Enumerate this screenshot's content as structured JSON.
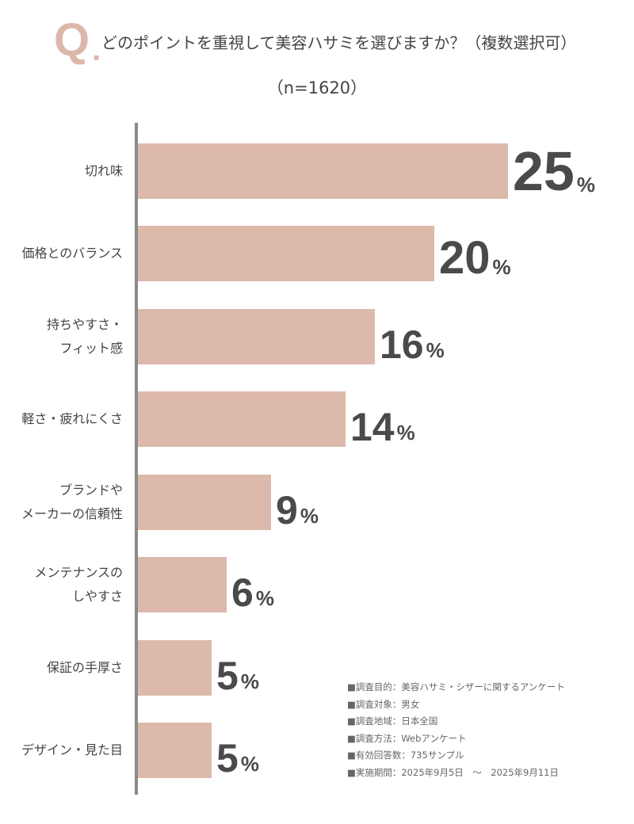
{
  "header": {
    "q_mark": "Q",
    "q_dot": ".",
    "question": "どのポイントを重視して美容ハサミを選びますか？（複数選択可）",
    "sample_size": "（n=1620）"
  },
  "chart_data": {
    "type": "bar",
    "orientation": "horizontal",
    "title": "どのポイントを重視して美容ハサミを選びますか？（複数選択可）",
    "subtitle": "（n=1620）",
    "xlabel": "",
    "ylabel": "",
    "unit": "%",
    "grid": false,
    "legend": null,
    "categories": [
      "切れ味",
      "価格とのバランス",
      "持ちやすさ・フィット感",
      "軽さ・疲れにくさ",
      "ブランドやメーカーの信頼性",
      "メンテナンスのしやすさ",
      "保証の手厚さ",
      "デザイン・見た目"
    ],
    "values": [
      25,
      20,
      16,
      14,
      9,
      6,
      5,
      5
    ],
    "bar_color": "#dcb9aa",
    "value_label_color": "#4a4a4a"
  },
  "rows": [
    {
      "label_lines": [
        "切れ味"
      ],
      "value": "25",
      "pct": "%"
    },
    {
      "label_lines": [
        "価格とのバランス"
      ],
      "value": "20",
      "pct": "%"
    },
    {
      "label_lines": [
        "持ちやすさ・",
        "フィット感"
      ],
      "value": "16",
      "pct": "%"
    },
    {
      "label_lines": [
        "軽さ・疲れにくさ"
      ],
      "value": "14",
      "pct": "%"
    },
    {
      "label_lines": [
        "ブランドや",
        "メーカーの信頼性"
      ],
      "value": "9",
      "pct": "%"
    },
    {
      "label_lines": [
        "メンテナンスの",
        "しやすさ"
      ],
      "value": "6",
      "pct": "%"
    },
    {
      "label_lines": [
        "保証の手厚さ"
      ],
      "value": "5",
      "pct": "%"
    },
    {
      "label_lines": [
        "デザイン・見た目"
      ],
      "value": "5",
      "pct": "%"
    }
  ],
  "notes": [
    "■調査目的：美容ハサミ・シザーに関するアンケート",
    "■調査対象：男女",
    "■調査地域：日本全国",
    "■調査方法：Webアンケート",
    "■有効回答数：735サンプル",
    "■実施期間：2025年9月5日　～　2025年9月11日"
  ]
}
